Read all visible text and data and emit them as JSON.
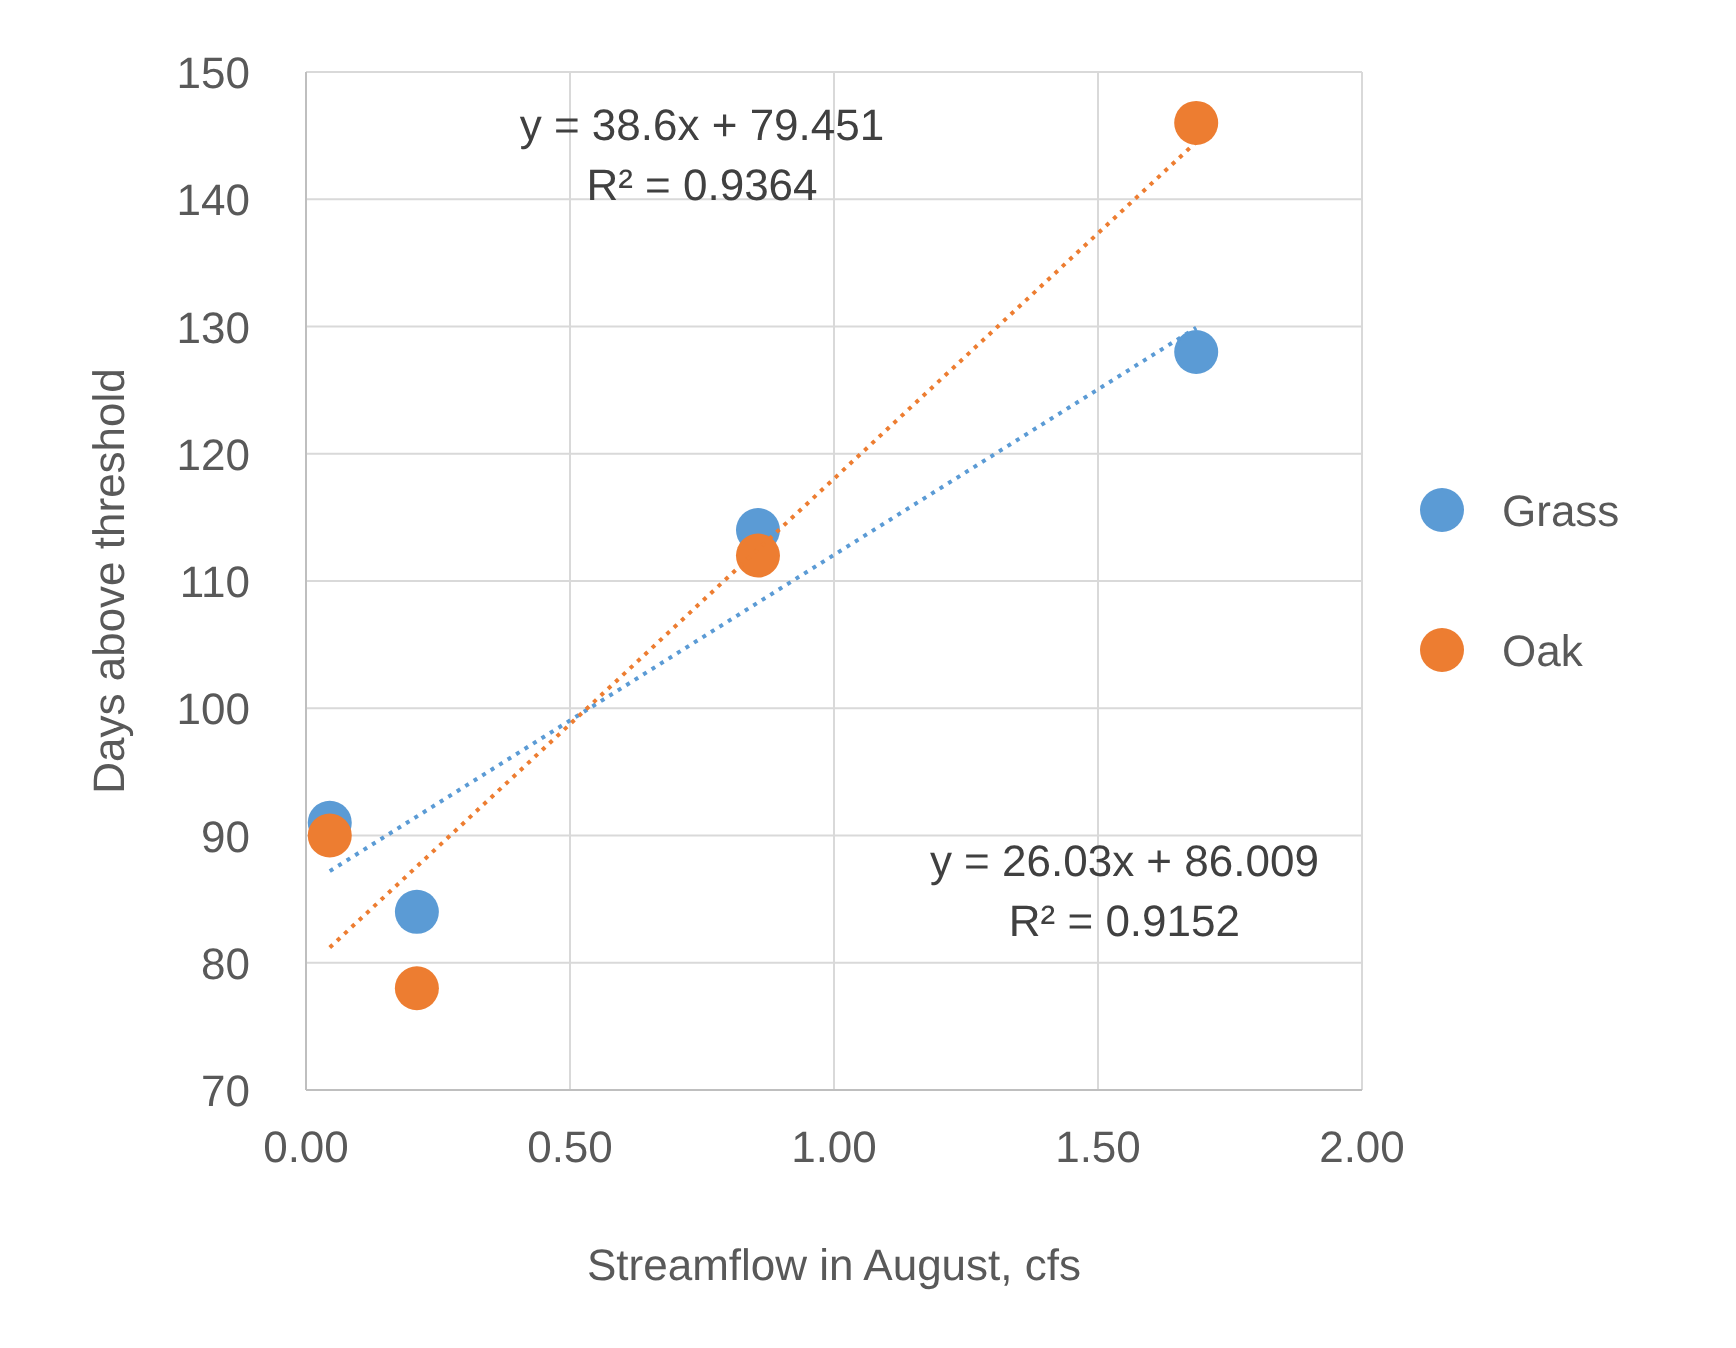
{
  "chart_data": {
    "type": "scatter",
    "xlabel": "Streamflow in August, cfs",
    "ylabel": "Days above threshold",
    "xlim": [
      0,
      2
    ],
    "xticks": [
      {
        "value": 0,
        "label": "0.00"
      },
      {
        "value": 0.5,
        "label": "0.50"
      },
      {
        "value": 1,
        "label": "1.00"
      },
      {
        "value": 1.5,
        "label": "1.50"
      },
      {
        "value": 2,
        "label": "2.00"
      }
    ],
    "ylim": [
      70,
      150
    ],
    "yticks": [
      70,
      80,
      90,
      100,
      110,
      120,
      130,
      140,
      150
    ],
    "grid": true,
    "legend": "right",
    "marker": "circle",
    "series": [
      {
        "name": "Grass",
        "color": "#5b9bd5",
        "x": [
          0.045,
          0.21,
          0.856,
          1.686
        ],
        "values": [
          91,
          84,
          114,
          128
        ]
      },
      {
        "name": "Oak",
        "color": "#ed7d31",
        "x": [
          0.045,
          0.21,
          0.856,
          1.686
        ],
        "values": [
          90,
          78,
          112,
          146
        ]
      },
      {
        "type": "line",
        "color": "#5b9bd5",
        "line_style": "dotted",
        "marker": "none",
        "x": [
          0.045,
          1.686
        ],
        "values": [
          87.2,
          129.9
        ]
      },
      {
        "type": "line",
        "color": "#ed7d31",
        "line_style": "dotted",
        "marker": "none",
        "x": [
          0.045,
          1.686
        ],
        "values": [
          81.2,
          144.5
        ]
      }
    ],
    "annotations": [
      "y = 38.6x + 79.451\nR² = 0.9364",
      "y = 26.03x + 86.009\nR² = 0.9152"
    ]
  }
}
